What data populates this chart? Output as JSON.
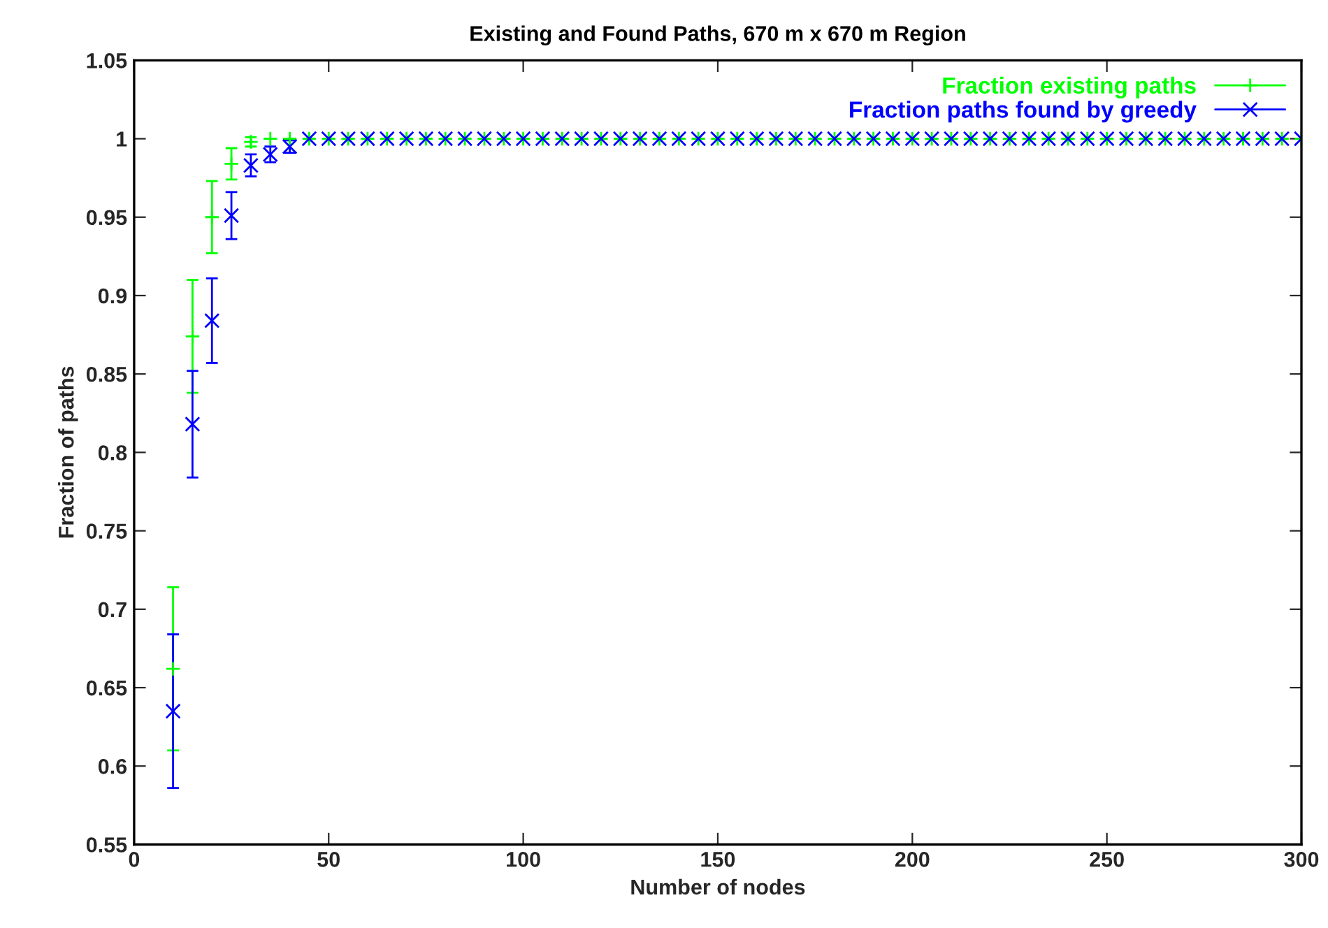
{
  "chart_data": {
    "type": "scatter",
    "title": "Existing and Found Paths, 670 m x 670 m Region",
    "xlabel": "Number of nodes",
    "ylabel": "Fraction of paths",
    "x": [
      10,
      15,
      20,
      25,
      30,
      35,
      40,
      45,
      50,
      55,
      60,
      65,
      70,
      75,
      80,
      85,
      90,
      95,
      100,
      105,
      110,
      115,
      120,
      125,
      130,
      135,
      140,
      145,
      150,
      155,
      160,
      165,
      170,
      175,
      180,
      185,
      190,
      195,
      200,
      205,
      210,
      215,
      220,
      225,
      230,
      235,
      240,
      245,
      250,
      255,
      260,
      265,
      270,
      275,
      280,
      285,
      290,
      295,
      300
    ],
    "series": [
      {
        "name": "Fraction existing paths",
        "color": "#00ff00",
        "marker": "plus",
        "values": [
          0.662,
          0.874,
          0.95,
          0.984,
          0.998,
          1,
          1,
          1,
          1,
          1,
          1,
          1,
          1,
          1,
          1,
          1,
          1,
          1,
          1,
          1,
          1,
          1,
          1,
          1,
          1,
          1,
          1,
          1,
          1,
          1,
          1,
          1,
          1,
          1,
          1,
          1,
          1,
          1,
          1,
          1,
          1,
          1,
          1,
          1,
          1,
          1,
          1,
          1,
          1,
          1,
          1,
          1,
          1,
          1,
          1,
          1,
          1,
          1,
          1
        ],
        "errors": [
          0.052,
          0.036,
          0.023,
          0.01,
          0.003,
          null,
          null,
          null,
          null,
          null,
          null,
          null,
          null,
          null,
          null,
          null,
          null,
          null,
          null,
          null,
          null,
          null,
          null,
          null,
          null,
          null,
          null,
          null,
          null,
          null,
          null,
          null,
          null,
          null,
          null,
          null,
          null,
          null,
          null,
          null,
          null,
          null,
          null,
          null,
          null,
          null,
          null,
          null,
          null,
          null,
          null,
          null,
          null,
          null,
          null,
          null,
          null,
          null,
          null
        ]
      },
      {
        "name": "Fraction paths found by greedy",
        "color": "#0000ff",
        "marker": "cross",
        "values": [
          0.635,
          0.818,
          0.884,
          0.951,
          0.983,
          0.99,
          0.995,
          1,
          1,
          1,
          1,
          1,
          1,
          1,
          1,
          1,
          1,
          1,
          1,
          1,
          1,
          1,
          1,
          1,
          1,
          1,
          1,
          1,
          1,
          1,
          1,
          1,
          1,
          1,
          1,
          1,
          1,
          1,
          1,
          1,
          1,
          1,
          1,
          1,
          1,
          1,
          1,
          1,
          1,
          1,
          1,
          1,
          1,
          1,
          1,
          1,
          1,
          1,
          1
        ],
        "errors": [
          0.049,
          0.034,
          0.027,
          0.015,
          0.007,
          0.005,
          0.004,
          null,
          null,
          null,
          null,
          null,
          null,
          null,
          null,
          null,
          null,
          null,
          null,
          null,
          null,
          null,
          null,
          null,
          null,
          null,
          null,
          null,
          null,
          null,
          null,
          null,
          null,
          null,
          null,
          null,
          null,
          null,
          null,
          null,
          null,
          null,
          null,
          null,
          null,
          null,
          null,
          null,
          null,
          null,
          null,
          null,
          null,
          null,
          null,
          null,
          null,
          null,
          null
        ]
      }
    ],
    "xlim": [
      0,
      300
    ],
    "xticks": [
      0,
      50,
      100,
      150,
      200,
      250,
      300
    ],
    "ylim": [
      0.55,
      1.05
    ],
    "yticks": [
      0.55,
      0.6,
      0.65,
      0.7,
      0.75,
      0.8,
      0.85,
      0.9,
      0.95,
      1,
      1.05
    ],
    "grid": false,
    "legend": "top right"
  }
}
